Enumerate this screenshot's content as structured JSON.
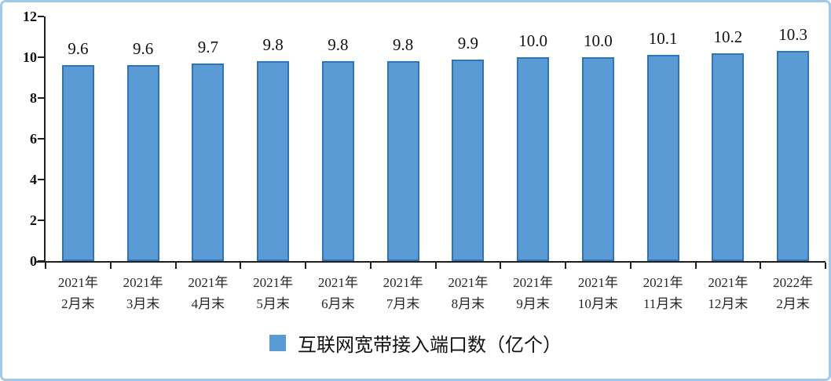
{
  "frame": {
    "border_color": "#a3c9e9",
    "background_color": "#ffffff"
  },
  "chart_data": {
    "type": "bar",
    "title": "",
    "legend": "互联网宽带接入端口数（亿个）",
    "legend_position": "bottom",
    "categories": [
      "2021年\n2月末",
      "2021年\n3月末",
      "2021年\n4月末",
      "2021年\n5月末",
      "2021年\n6月末",
      "2021年\n7月末",
      "2021年\n8月末",
      "2021年\n9月末",
      "2021年\n10月末",
      "2021年\n11月末",
      "2021年\n12月末",
      "2022年\n2月末"
    ],
    "values": [
      9.6,
      9.6,
      9.7,
      9.8,
      9.8,
      9.8,
      9.9,
      10.0,
      10.0,
      10.1,
      10.2,
      10.3
    ],
    "value_labels": [
      "9.6",
      "9.6",
      "9.7",
      "9.8",
      "9.8",
      "9.8",
      "9.9",
      "10.0",
      "10.0",
      "10.1",
      "10.2",
      "10.3"
    ],
    "xlabel": "",
    "ylabel": "",
    "ylim": [
      0,
      12
    ],
    "yticks": [
      0,
      2,
      4,
      6,
      8,
      10,
      12
    ],
    "grid": false,
    "bar_color": "#5b9bd5",
    "bar_border_color": "#2e75b6"
  }
}
